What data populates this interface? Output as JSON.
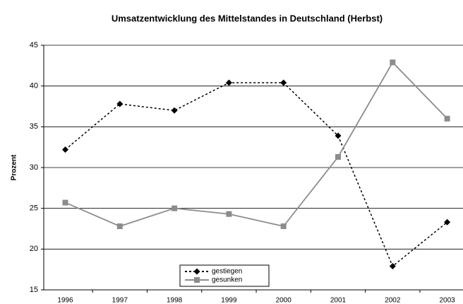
{
  "chart_data": {
    "type": "line",
    "title": "Umsatzentwicklung des Mittelstandes in Deutschland (Herbst)",
    "y_label": "Prozent",
    "categories": [
      "1996",
      "1997",
      "1998",
      "1999",
      "2000",
      "2001",
      "2002",
      "2003"
    ],
    "series": [
      {
        "name": "gestiegen",
        "color": "#000000",
        "values": [
          32.2,
          37.8,
          37.0,
          40.4,
          40.4,
          33.9,
          17.9,
          23.3
        ]
      },
      {
        "name": "gesunken",
        "color": "#8c8c8c",
        "values": [
          25.7,
          22.8,
          25.0,
          24.3,
          22.8,
          31.3,
          42.9,
          36.0
        ]
      }
    ],
    "ylim": [
      15,
      45
    ],
    "yticks": [
      15,
      20,
      25,
      30,
      35,
      40,
      45
    ],
    "grid": true
  }
}
